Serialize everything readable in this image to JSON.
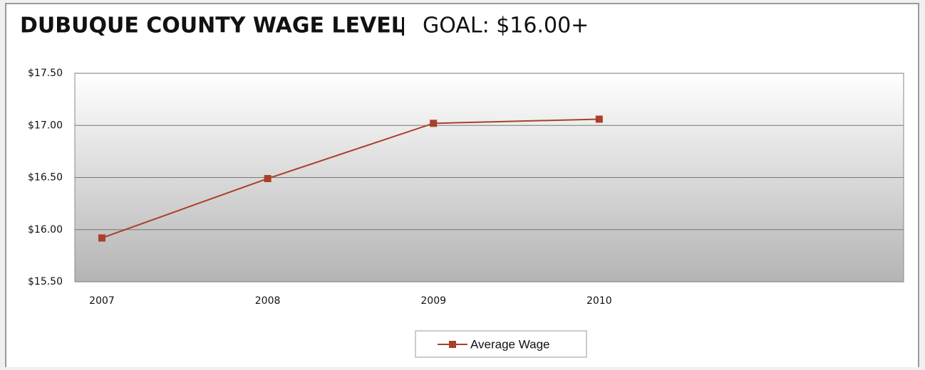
{
  "chart_data": {
    "type": "line",
    "title": "DUBUQUE COUNTY WAGE LEVEL",
    "subtitle": "GOAL: $16.00+",
    "categories": [
      "2007",
      "2008",
      "2009",
      "2010",
      null
    ],
    "series": [
      {
        "name": "Average Wage",
        "color": "#a8402a",
        "values": [
          15.92,
          16.49,
          17.02,
          17.06,
          null
        ]
      }
    ],
    "ylim": [
      15.5,
      17.5
    ],
    "yticks": [
      {
        "value": 15.5,
        "label": "$15.50"
      },
      {
        "value": 16,
        "label": "$16.00"
      },
      {
        "value": 16.5,
        "label": "$16.50"
      },
      {
        "value": 17,
        "label": "$17.00"
      },
      {
        "value": 17.5,
        "label": "$17.50"
      }
    ],
    "grid": true,
    "legend": "bottom"
  }
}
